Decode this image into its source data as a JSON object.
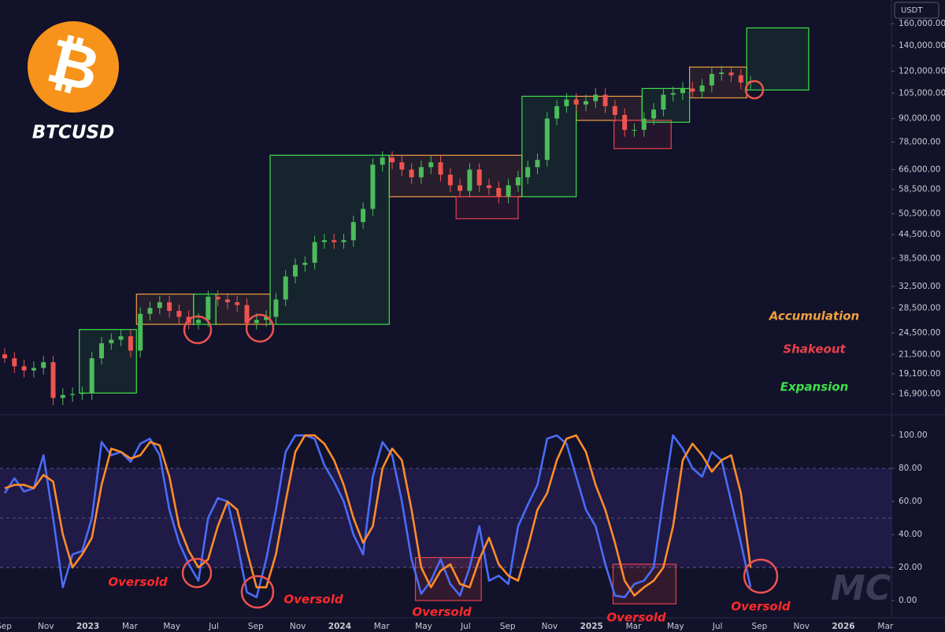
{
  "logo": {
    "symbol": "₿",
    "ticker": "BTCUSD"
  },
  "currency": "USDT",
  "watermark": "MC",
  "chart_data": [
    {
      "type": "candlestick",
      "log_scale": true,
      "ylim": [
        14900,
        184800
      ],
      "yticks": [
        {
          "value": 160000,
          "label": "160,000.00"
        },
        {
          "value": 140000,
          "label": "140,000.00"
        },
        {
          "value": 120000,
          "label": "120,000.00"
        },
        {
          "value": 105000,
          "label": "105,000.00"
        },
        {
          "value": 90000,
          "label": "90,000.00"
        },
        {
          "value": 78000,
          "label": "78,000.00"
        },
        {
          "value": 66000,
          "label": "66,000.00"
        },
        {
          "value": 58500,
          "label": "58,500.00"
        },
        {
          "value": 50500,
          "label": "50,500.00"
        },
        {
          "value": 44500,
          "label": "44,500.00"
        },
        {
          "value": 38500,
          "label": "38,500.00"
        },
        {
          "value": 32500,
          "label": "32,500.00"
        },
        {
          "value": 28500,
          "label": "28,500.00"
        },
        {
          "value": 24500,
          "label": "24,500.00"
        },
        {
          "value": 21500,
          "label": "21,500.00"
        },
        {
          "value": 19100,
          "label": "19,100.00"
        },
        {
          "value": 16900,
          "label": "16,900.00"
        }
      ],
      "colors": {
        "up": "#4cbb5a",
        "down": "#ef5350"
      },
      "ohlc": [
        [
          21500,
          22300,
          20400,
          21000
        ],
        [
          21000,
          21800,
          19200,
          20000
        ],
        [
          20000,
          20800,
          18700,
          19500
        ],
        [
          19500,
          20600,
          18700,
          19800
        ],
        [
          19800,
          21300,
          19000,
          20500
        ],
        [
          20500,
          21300,
          15800,
          16500
        ],
        [
          16500,
          17500,
          15800,
          16800
        ],
        [
          16800,
          17600,
          16100,
          16900
        ],
        [
          16900,
          17700,
          16300,
          17000
        ],
        [
          17000,
          21800,
          16300,
          21000
        ],
        [
          21000,
          23900,
          20200,
          23000
        ],
        [
          23000,
          24400,
          22100,
          23500
        ],
        [
          23500,
          25000,
          22600,
          24000
        ],
        [
          24000,
          25000,
          21100,
          22000
        ],
        [
          22000,
          28600,
          21100,
          27500
        ],
        [
          27500,
          29600,
          26400,
          28500
        ],
        [
          28500,
          30700,
          27400,
          29500
        ],
        [
          29500,
          30700,
          26900,
          28000
        ],
        [
          28000,
          29100,
          25900,
          27000
        ],
        [
          27000,
          28100,
          25000,
          26000
        ],
        [
          26000,
          27600,
          25000,
          26500
        ],
        [
          26500,
          31700,
          25400,
          30500
        ],
        [
          30500,
          31700,
          28800,
          30000
        ],
        [
          30000,
          31200,
          28300,
          29500
        ],
        [
          29500,
          30700,
          27800,
          29000
        ],
        [
          29000,
          30200,
          25000,
          26000
        ],
        [
          26000,
          27600,
          25000,
          26500
        ],
        [
          26500,
          28100,
          25400,
          27000
        ],
        [
          27000,
          31200,
          25900,
          30000
        ],
        [
          30000,
          35900,
          28800,
          34500
        ],
        [
          34500,
          38500,
          33100,
          37000
        ],
        [
          37000,
          39000,
          35500,
          37500
        ],
        [
          37500,
          44200,
          36000,
          42500
        ],
        [
          42500,
          44700,
          40800,
          43000
        ],
        [
          43000,
          44700,
          40800,
          42500
        ],
        [
          42500,
          44700,
          40800,
          43000
        ],
        [
          43000,
          49900,
          41300,
          48000
        ],
        [
          48000,
          54100,
          46100,
          52000
        ],
        [
          52000,
          70700,
          49900,
          68000
        ],
        [
          68000,
          73800,
          65300,
          71000
        ],
        [
          71000,
          73800,
          66200,
          69000
        ],
        [
          69000,
          71800,
          63400,
          66000
        ],
        [
          66000,
          68600,
          60500,
          63000
        ],
        [
          63000,
          69700,
          60500,
          67000
        ],
        [
          67000,
          71800,
          64300,
          69000
        ],
        [
          69000,
          71800,
          61400,
          64000
        ],
        [
          64000,
          66600,
          57600,
          60000
        ],
        [
          60000,
          62400,
          55700,
          58000
        ],
        [
          58000,
          68600,
          55700,
          66000
        ],
        [
          66000,
          68600,
          57600,
          60000
        ],
        [
          60000,
          62400,
          56600,
          59000
        ],
        [
          59000,
          61400,
          53800,
          56000
        ],
        [
          56000,
          62400,
          53800,
          60000
        ],
        [
          60000,
          65500,
          57600,
          63000
        ],
        [
          63000,
          69700,
          60500,
          67000
        ],
        [
          67000,
          72800,
          64300,
          70000
        ],
        [
          70000,
          93600,
          67200,
          90000
        ],
        [
          90000,
          100900,
          86400,
          97000
        ],
        [
          97000,
          105000,
          93100,
          101000
        ],
        [
          101000,
          105000,
          94100,
          98000
        ],
        [
          98000,
          104000,
          94100,
          100000
        ],
        [
          100000,
          108200,
          96000,
          104000
        ],
        [
          104000,
          108200,
          93100,
          97000
        ],
        [
          97000,
          100900,
          88300,
          92000
        ],
        [
          92000,
          95700,
          80600,
          84000
        ],
        [
          84000,
          87400,
          80600,
          84000
        ],
        [
          84000,
          93600,
          80600,
          90000
        ],
        [
          90000,
          98800,
          86400,
          95000
        ],
        [
          95000,
          108200,
          91200,
          104000
        ],
        [
          104000,
          109200,
          99800,
          105000
        ],
        [
          105000,
          112300,
          100800,
          108000
        ],
        [
          108000,
          112300,
          101800,
          106000
        ],
        [
          106000,
          114400,
          101800,
          110000
        ],
        [
          110000,
          122700,
          105600,
          118000
        ],
        [
          118000,
          123800,
          113300,
          119000
        ],
        [
          119000,
          123800,
          112300,
          117000
        ],
        [
          117000,
          121700,
          107500,
          112000
        ],
        [
          112000,
          116500,
          107500,
          113000
        ]
      ],
      "zones": {
        "legend": "right",
        "series": [
          {
            "name": "Accumulation",
            "color": "#f0a040",
            "boxes": [
              [
                13.6,
                19.5,
                25800,
                31000
              ],
              [
                21.8,
                27.4,
                25800,
                31000
              ],
              [
                39.7,
                53.4,
                56000,
                72000
              ],
              [
                59,
                65.8,
                89000,
                103000
              ],
              [
                70.7,
                76.6,
                102000,
                123000
              ]
            ]
          },
          {
            "name": "Shakeout",
            "color": "#e8404a",
            "boxes": [
              [
                46.6,
                53,
                49000,
                56000
              ],
              [
                62.9,
                68.8,
                75000,
                89000
              ]
            ]
          },
          {
            "name": "Expansion",
            "color": "#3ee04a",
            "boxes": [
              [
                7.7,
                13.6,
                17000,
                25000
              ],
              [
                19.5,
                21.8,
                25800,
                31000
              ],
              [
                27.4,
                39.7,
                25800,
                72000
              ],
              [
                53.4,
                59,
                56000,
                103000
              ],
              [
                65.8,
                70.7,
                88000,
                108000
              ],
              [
                76.6,
                83,
                107000,
                156000
              ]
            ]
          }
        ]
      }
    },
    {
      "type": "line",
      "ylim": [
        -10,
        112
      ],
      "yticks": [
        {
          "value": 100,
          "label": "100.00"
        },
        {
          "value": 80,
          "label": "80.00"
        },
        {
          "value": 60,
          "label": "60.00"
        },
        {
          "value": 40,
          "label": "40.00"
        },
        {
          "value": 20,
          "label": "20.00"
        },
        {
          "value": 0,
          "label": "0.00"
        }
      ],
      "band": [
        20,
        80
      ],
      "levels": [
        20,
        50,
        80
      ],
      "xaxis_labels": [
        "Sep",
        "Nov",
        "2023",
        "Mar",
        "May",
        "Jul",
        "Sep",
        "Nov",
        "2024",
        "Mar",
        "May",
        "Jul",
        "Sep",
        "Nov",
        "2025",
        "Mar",
        "May",
        "Jul",
        "Sep",
        "Nov",
        "2026",
        "Mar"
      ],
      "series": [
        {
          "color": "#4a6cf7",
          "values": [
            65,
            74,
            66,
            68,
            88,
            50,
            8,
            28,
            30,
            50,
            96,
            88,
            90,
            84,
            95,
            98,
            88,
            55,
            35,
            22,
            12,
            50,
            62,
            60,
            35,
            5,
            2,
            25,
            55,
            90,
            100,
            100,
            98,
            82,
            72,
            60,
            40,
            28,
            75,
            96,
            88,
            60,
            25,
            4,
            12,
            25,
            10,
            3,
            20,
            45,
            12,
            15,
            10,
            45,
            58,
            70,
            98,
            100,
            95,
            75,
            55,
            45,
            22,
            3,
            2,
            10,
            12,
            20,
            62,
            100,
            92,
            80,
            75,
            90,
            85,
            60,
            35,
            8
          ]
        },
        {
          "color": "#ff8c2a",
          "values": [
            68,
            70,
            70,
            68,
            76,
            72,
            40,
            20,
            28,
            38,
            70,
            92,
            90,
            86,
            88,
            96,
            94,
            75,
            45,
            30,
            20,
            25,
            45,
            60,
            55,
            30,
            8,
            8,
            28,
            60,
            90,
            100,
            100,
            95,
            85,
            70,
            50,
            35,
            45,
            80,
            92,
            85,
            55,
            20,
            8,
            18,
            22,
            10,
            8,
            25,
            38,
            22,
            15,
            12,
            32,
            55,
            65,
            85,
            98,
            100,
            90,
            70,
            55,
            35,
            12,
            3,
            8,
            12,
            20,
            45,
            85,
            95,
            88,
            78,
            85,
            88,
            65,
            20
          ]
        }
      ],
      "oversold_zones": [
        [
          42.4,
          49.2,
          0,
          26
        ],
        [
          62.8,
          69.3,
          -2,
          22
        ]
      ],
      "annotations": [
        "Oversold",
        "Oversold",
        "Oversold",
        "Oversold",
        "Oversold"
      ]
    }
  ]
}
